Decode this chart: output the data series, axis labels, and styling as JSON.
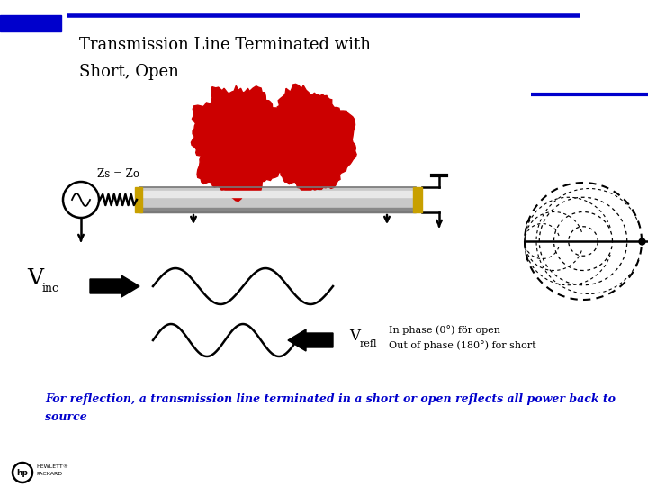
{
  "title_line1": "Transmission Line Terminated with",
  "title_line2": "Short, Open",
  "title_fontsize": 13,
  "title_color": "#000000",
  "zs_label": "Zs = Zo",
  "vinc_label_big": "V",
  "vinc_label_small": "inc",
  "vrefl_label_big": "V",
  "vrefl_label_small": "refl",
  "phase_label1": "In phase (0°) för open",
  "phase_label2": "Out of phase (180°) for short",
  "bottom_text1": "For reflection, a transmission line terminated in a short or open reflects all power back to",
  "bottom_text2": "source",
  "bottom_text_color": "#0000CC",
  "label_color": "#000000",
  "bg_color": "#ffffff",
  "blue_color": "#0000CC",
  "red_color": "#CC0000",
  "black": "#000000"
}
